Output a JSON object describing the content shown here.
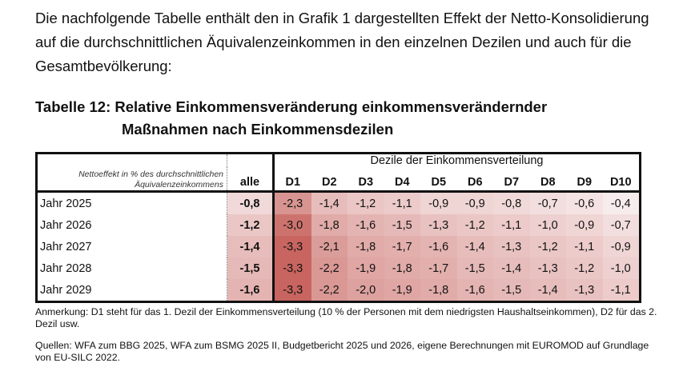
{
  "intro": "Die nachfolgende Tabelle enthält den in Grafik 1 dargestellten Effekt der Netto-Konsolidierung auf die durchschnittlichen Äquivalenzeinkommen in den einzelnen Dezilen und auch für die Gesamtbevölkerung:",
  "title": {
    "line1": "Tabelle 12:  Relative Einkommensveränderung einkommensverändernder",
    "line2": "Maßnahmen nach Einkommensdezilen"
  },
  "table": {
    "corner_label_1": "Nettoeffekt in % des durchschnittlichen",
    "corner_label_2": "Äquivalenzeinkommens",
    "alle_header": "alle",
    "group_header": "Dezile der Einkommensverteilung",
    "deciles": [
      "D1",
      "D2",
      "D3",
      "D4",
      "D5",
      "D6",
      "D7",
      "D8",
      "D9",
      "D10"
    ],
    "rows": [
      {
        "label": "Jahr 2025",
        "alle": "-0,8",
        "values": [
          "-2,3",
          "-1,4",
          "-1,2",
          "-1,1",
          "-0,9",
          "-0,9",
          "-0,8",
          "-0,7",
          "-0,6",
          "-0,4"
        ]
      },
      {
        "label": "Jahr 2026",
        "alle": "-1,2",
        "values": [
          "-3,0",
          "-1,8",
          "-1,6",
          "-1,5",
          "-1,3",
          "-1,2",
          "-1,1",
          "-1,0",
          "-0,9",
          "-0,7"
        ]
      },
      {
        "label": "Jahr 2027",
        "alle": "-1,4",
        "values": [
          "-3,3",
          "-2,1",
          "-1,8",
          "-1,7",
          "-1,6",
          "-1,4",
          "-1,3",
          "-1,2",
          "-1,1",
          "-0,9"
        ]
      },
      {
        "label": "Jahr 2028",
        "alle": "-1,5",
        "values": [
          "-3,3",
          "-2,2",
          "-1,9",
          "-1,8",
          "-1,7",
          "-1,5",
          "-1,4",
          "-1,3",
          "-1,2",
          "-1,0"
        ]
      },
      {
        "label": "Jahr 2029",
        "alle": "-1,6",
        "values": [
          "-3,3",
          "-2,2",
          "-2,0",
          "-1,9",
          "-1,8",
          "-1,6",
          "-1,5",
          "-1,4",
          "-1,3",
          "-1,1"
        ]
      }
    ],
    "heat_colors": {
      "low": "#f7ecec",
      "high": "#c86560"
    }
  },
  "notes": {
    "anmerkung": "Anmerkung: D1 steht für das 1. Dezil der Einkommensverteilung (10 % der Personen mit dem niedrigsten Haushaltseinkommen), D2 für das 2. Dezil usw.",
    "quellen": "Quellen: WFA zum BBG 2025, WFA zum BSMG 2025 II, Budgetbericht 2025 und 2026, eigene Berechnungen mit EUROMOD auf Grundlage von EU-SILC 2022."
  }
}
